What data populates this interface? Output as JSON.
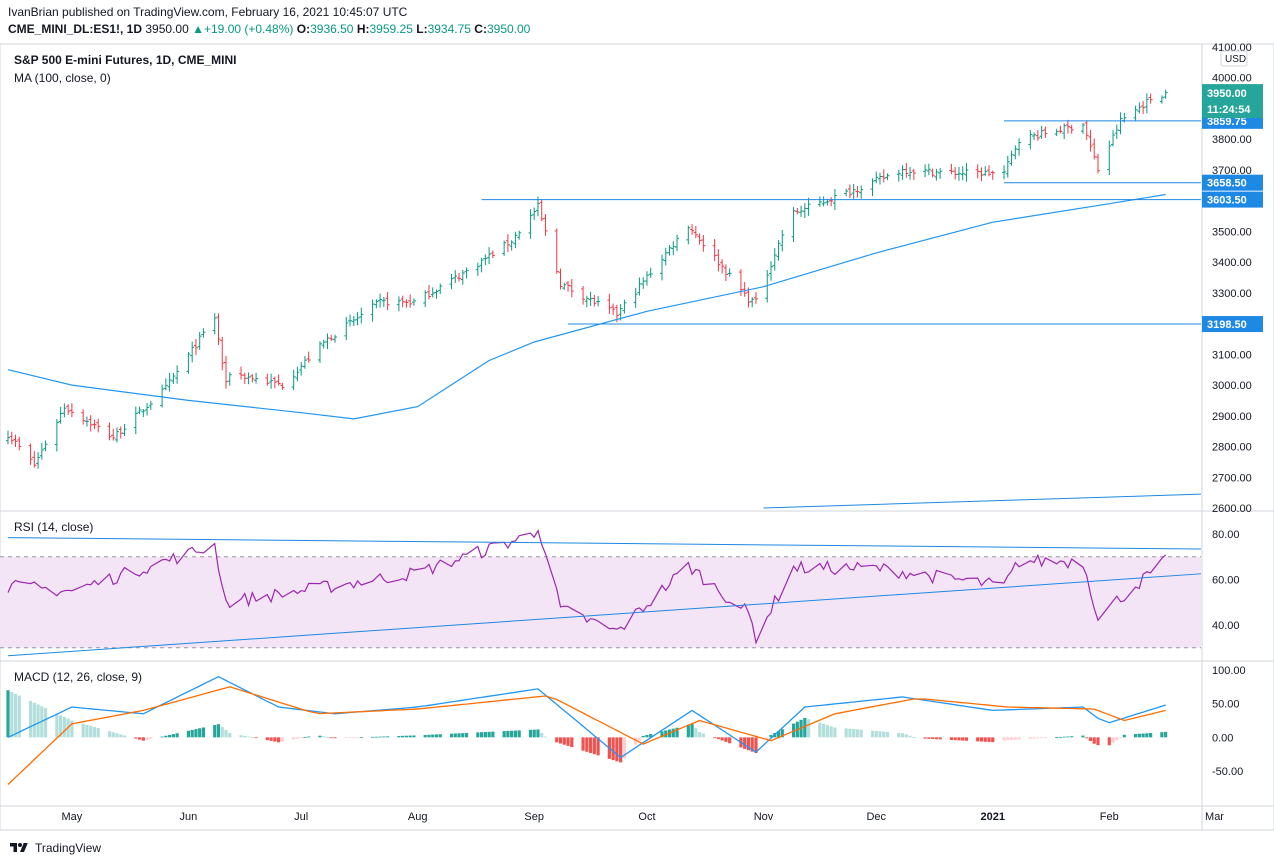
{
  "header": {
    "published_line": "IvanBrian published on TradingView.com, February 16, 2021 10:45:07 UTC",
    "symbol": "CME_MINI_DL:ES1!, 1D",
    "last": "3950.00",
    "change_arrow": "▲",
    "change": "+19.00 (+0.48%)",
    "o_label": "O:",
    "o_value": "3936.50",
    "h_label": "H:",
    "h_value": "3959.25",
    "l_label": "L:",
    "l_value": "3934.75",
    "c_label": "C:",
    "c_value": "3950.00"
  },
  "colors": {
    "up": "#089981",
    "down": "#f23645",
    "ma": "#2196f3",
    "level": "#1e88e5",
    "rsi_line": "#9c27b0",
    "rsi_band": "#f3e5f5",
    "macd_line": "#2196f3",
    "signal_line": "#ff6d00",
    "hist_up_strong": "#26a69a",
    "hist_up_weak": "#b2dfdb",
    "hist_down_strong": "#ef5350",
    "hist_down_weak": "#ffcdd2",
    "current_price_tag": "#26a69a",
    "level_tag": "#1e88e5",
    "axis_text": "#131722"
  },
  "chart_data": [
    {
      "type": "candlestick",
      "pane": "price",
      "title": "S&P 500 E-mini Futures, 1D, CME_MINI",
      "indicator_label": "MA (100, close, 0)",
      "currency": "USD",
      "ylim": [
        2600,
        4100
      ],
      "y_ticks": [
        "4100.00",
        "4000.00",
        "3900.00",
        "3800.00",
        "3700.00",
        "3600.00",
        "3500.00",
        "3400.00",
        "3300.00",
        "3200.00",
        "3100.00",
        "3000.00",
        "2900.00",
        "2800.00",
        "2700.00",
        "2600.00"
      ],
      "x_ticks": [
        "May",
        "Jun",
        "Jul",
        "Aug",
        "Sep",
        "Oct",
        "Nov",
        "Dec",
        "2021",
        "Feb",
        "Mar"
      ],
      "x_tick_dates": [
        "2020-05-01",
        "2020-06-01",
        "2020-07-01",
        "2020-08-01",
        "2020-09-01",
        "2020-10-01",
        "2020-11-01",
        "2020-12-01",
        "2021-01-01",
        "2021-02-01",
        "2021-03-01"
      ],
      "x_range": [
        "2020-04-14",
        "2021-03-02"
      ],
      "close_anchors": [
        [
          "2020-04-14",
          2840
        ],
        [
          "2020-04-21",
          2740
        ],
        [
          "2020-04-29",
          2930
        ],
        [
          "2020-05-12",
          2830
        ],
        [
          "2020-05-26",
          2990
        ],
        [
          "2020-06-08",
          3220
        ],
        [
          "2020-06-11",
          3000
        ],
        [
          "2020-06-12",
          3040
        ],
        [
          "2020-06-26",
          3000
        ],
        [
          "2020-07-08",
          3150
        ],
        [
          "2020-07-22",
          3270
        ],
        [
          "2020-07-31",
          3270
        ],
        [
          "2020-08-14",
          3370
        ],
        [
          "2020-08-26",
          3470
        ],
        [
          "2020-09-02",
          3580
        ],
        [
          "2020-09-08",
          3330
        ],
        [
          "2020-09-23",
          3230
        ],
        [
          "2020-10-12",
          3520
        ],
        [
          "2020-10-28",
          3280
        ],
        [
          "2020-10-30",
          3270
        ],
        [
          "2020-11-06",
          3490
        ],
        [
          "2020-11-09",
          3560
        ],
        [
          "2020-11-24",
          3630
        ],
        [
          "2020-12-08",
          3700
        ],
        [
          "2020-12-21",
          3690
        ],
        [
          "2021-01-04",
          3690
        ],
        [
          "2021-01-08",
          3800
        ],
        [
          "2021-01-22",
          3840
        ],
        [
          "2021-01-25",
          3850
        ],
        [
          "2021-01-29",
          3700
        ],
        [
          "2021-02-04",
          3860
        ],
        [
          "2021-02-12",
          3931
        ],
        [
          "2021-02-16",
          3950
        ]
      ],
      "ma100_line": [
        [
          "2020-04-14",
          3050
        ],
        [
          "2020-05-01",
          3000
        ],
        [
          "2020-06-01",
          2950
        ],
        [
          "2020-07-01",
          2910
        ],
        [
          "2020-07-15",
          2890
        ],
        [
          "2020-08-01",
          2930
        ],
        [
          "2020-08-20",
          3080
        ],
        [
          "2020-09-01",
          3140
        ],
        [
          "2020-10-01",
          3240
        ],
        [
          "2020-11-01",
          3320
        ],
        [
          "2020-12-01",
          3430
        ],
        [
          "2021-01-01",
          3530
        ],
        [
          "2021-02-01",
          3590
        ],
        [
          "2021-02-16",
          3620
        ]
      ],
      "levels": [
        {
          "value": 3859.75,
          "label": "3859.75",
          "from": "2021-01-04",
          "to": "2021-03-02"
        },
        {
          "value": 3658.5,
          "label": "3658.50",
          "from": "2021-01-04",
          "to": "2021-03-02"
        },
        {
          "value": 3603.5,
          "label": "3603.50",
          "from": "2020-08-18",
          "to": "2021-03-02"
        },
        {
          "value": 3198.5,
          "label": "3198.50",
          "from": "2020-09-10",
          "to": "2021-03-02"
        }
      ],
      "long_trendline": [
        [
          "2020-11-01",
          2600
        ],
        [
          "2021-03-02",
          2645
        ]
      ],
      "current_price": {
        "value": 3950.0,
        "label": "3950.00",
        "countdown": "11:24:54"
      }
    },
    {
      "type": "line",
      "pane": "rsi",
      "title": "RSI (14, close)",
      "ylim": [
        26,
        86
      ],
      "y_ticks": [
        "80.00",
        "60.00",
        "40.00"
      ],
      "band": [
        30,
        70
      ],
      "anchors": [
        [
          "2020-04-14",
          57
        ],
        [
          "2020-05-01",
          55
        ],
        [
          "2020-06-08",
          75
        ],
        [
          "2020-06-11",
          50
        ],
        [
          "2020-07-01",
          55
        ],
        [
          "2020-08-01",
          63
        ],
        [
          "2020-09-01",
          80
        ],
        [
          "2020-09-02",
          84
        ],
        [
          "2020-09-08",
          47
        ],
        [
          "2020-09-23",
          37
        ],
        [
          "2020-10-12",
          66
        ],
        [
          "2020-10-28",
          45
        ],
        [
          "2020-10-30",
          35
        ],
        [
          "2020-11-09",
          65
        ],
        [
          "2020-12-01",
          65
        ],
        [
          "2021-01-04",
          57
        ],
        [
          "2021-01-08",
          68
        ],
        [
          "2021-01-25",
          68
        ],
        [
          "2021-01-29",
          44
        ],
        [
          "2021-02-16",
          68
        ]
      ],
      "trendlines": [
        [
          [
            "2020-04-14",
            78.4
          ],
          [
            "2021-03-02",
            73.4
          ]
        ],
        [
          [
            "2020-04-14",
            26.5
          ],
          [
            "2021-03-02",
            62.5
          ]
        ]
      ]
    },
    {
      "type": "macd",
      "pane": "macd",
      "title": "MACD (12, 26, close, 9)",
      "ylim": [
        -85,
        105
      ],
      "y_ticks": [
        "100.00",
        "50.00",
        "0.00",
        "-50.00"
      ],
      "macd_anchors": [
        [
          "2020-04-14",
          0
        ],
        [
          "2020-05-01",
          45
        ],
        [
          "2020-05-20",
          35
        ],
        [
          "2020-06-09",
          90
        ],
        [
          "2020-06-25",
          45
        ],
        [
          "2020-07-10",
          35
        ],
        [
          "2020-08-01",
          45
        ],
        [
          "2020-09-02",
          72
        ],
        [
          "2020-09-24",
          -30
        ],
        [
          "2020-10-13",
          40
        ],
        [
          "2020-10-30",
          -22
        ],
        [
          "2020-11-12",
          45
        ],
        [
          "2020-12-08",
          60
        ],
        [
          "2021-01-01",
          40
        ],
        [
          "2021-01-25",
          45
        ],
        [
          "2021-01-31",
          20
        ],
        [
          "2021-02-16",
          48
        ]
      ],
      "signal_anchors": [
        [
          "2020-04-14",
          -70
        ],
        [
          "2020-05-01",
          20
        ],
        [
          "2020-05-20",
          40
        ],
        [
          "2020-06-12",
          75
        ],
        [
          "2020-07-05",
          35
        ],
        [
          "2020-08-01",
          42
        ],
        [
          "2020-09-05",
          62
        ],
        [
          "2020-09-30",
          -10
        ],
        [
          "2020-10-15",
          25
        ],
        [
          "2020-11-03",
          -5
        ],
        [
          "2020-11-20",
          35
        ],
        [
          "2020-12-12",
          58
        ],
        [
          "2021-01-05",
          45
        ],
        [
          "2021-01-28",
          42
        ],
        [
          "2021-02-05",
          25
        ],
        [
          "2021-02-16",
          40
        ]
      ]
    }
  ],
  "footer": {
    "brand": "TradingView"
  }
}
